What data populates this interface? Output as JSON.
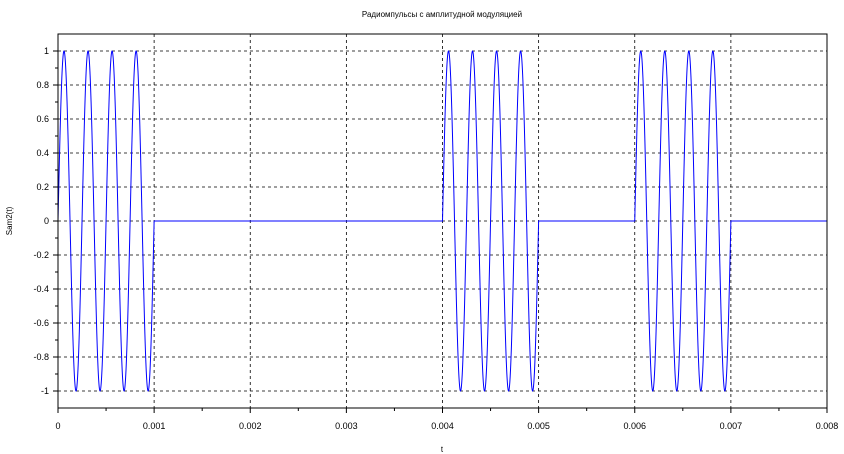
{
  "chart_data": {
    "type": "line",
    "title": "Радиомпульсы с амплитудной модуляцией",
    "xlabel": "t",
    "ylabel": "Sam2(t)",
    "xlim": [
      0,
      0.008
    ],
    "ylim": [
      -1.1,
      1.1
    ],
    "x_ticks": [
      0,
      0.001,
      0.002,
      0.003,
      0.004,
      0.005,
      0.006,
      0.007,
      0.008
    ],
    "x_tick_labels": [
      "0",
      "0.001",
      "0.002",
      "0.003",
      "0.004",
      "0.005",
      "0.006",
      "0.007",
      "0.008"
    ],
    "y_ticks": [
      1,
      0.8,
      0.6,
      0.4,
      0.2,
      0,
      -0.2,
      -0.4,
      -0.6,
      -0.8,
      -1
    ],
    "y_tick_labels": [
      "1",
      "0.8",
      "0.6",
      "0.4",
      "0.2",
      "0",
      "-0.2",
      "-0.4",
      "-0.6",
      "-0.8",
      "-1"
    ],
    "grid": true,
    "series": [
      {
        "color": "#0000ff",
        "carrier_frequency_hz": 4000,
        "pulses": [
          [
            0,
            0.001
          ],
          [
            0.004,
            0.005
          ],
          [
            0.006,
            0.007
          ]
        ],
        "amplitude": 1,
        "baseline": 0
      }
    ]
  }
}
